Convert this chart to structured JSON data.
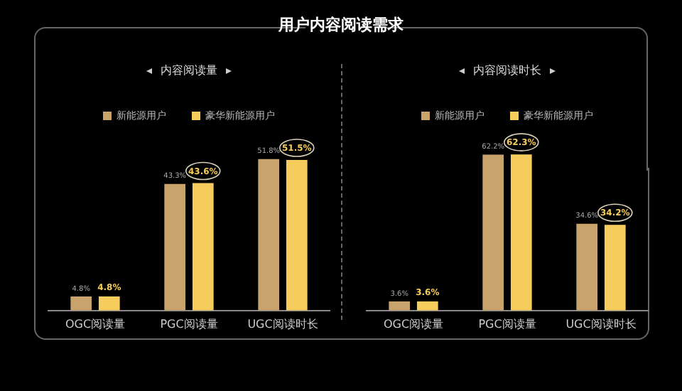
{
  "chart_data": [
    {
      "type": "bar",
      "title": "用户内容阅读需求",
      "subtitle": "内容阅读量",
      "categories": [
        "OGC阅读量",
        "PGC阅读量",
        "UGC阅读时长"
      ],
      "series": [
        {
          "name": "新能源用户",
          "color": "#c8a46c",
          "values": [
            4.8,
            43.3,
            51.8
          ],
          "value_labels": [
            "4.8%",
            "43.3%",
            "51.8%"
          ]
        },
        {
          "name": "豪华新能源用户",
          "color": "#f6cd5c",
          "values": [
            4.8,
            43.6,
            51.5
          ],
          "value_labels": [
            "4.8%",
            "43.6%",
            "51.5%"
          ]
        }
      ],
      "legend": "top",
      "grid": false
    },
    {
      "type": "bar",
      "subtitle": "内容阅读时长",
      "categories": [
        "OGC阅读量",
        "PGC阅读量",
        "UGC阅读时长"
      ],
      "series": [
        {
          "name": "新能源用户",
          "color": "#c8a46c",
          "values": [
            3.6,
            62.2,
            34.6
          ],
          "value_labels": [
            "3.6%",
            "62.2%",
            "34.6%"
          ]
        },
        {
          "name": "豪华新能源用户",
          "color": "#f6cd5c",
          "values": [
            3.6,
            62.3,
            34.2
          ],
          "value_labels": [
            "3.6%",
            "62.3%",
            "34.2%"
          ]
        }
      ],
      "legend": "top",
      "grid": false
    }
  ]
}
